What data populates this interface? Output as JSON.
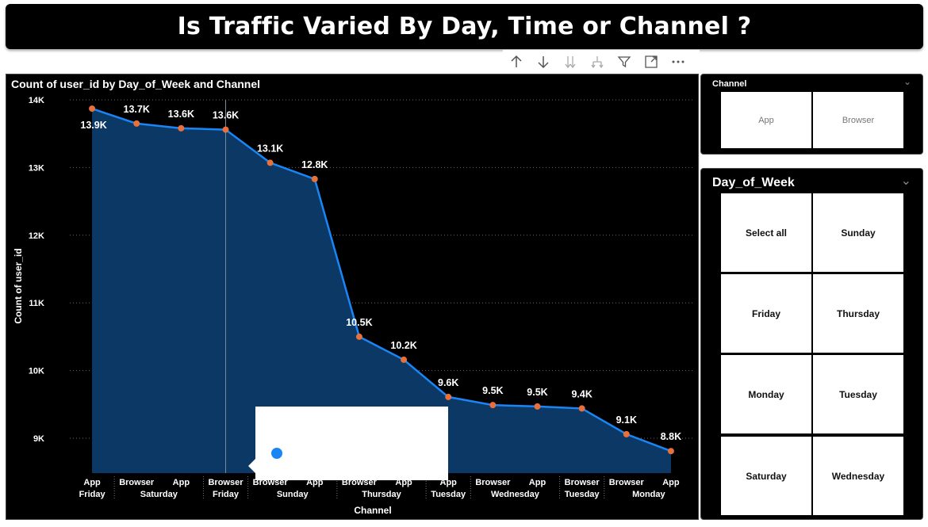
{
  "page": {
    "title": "Is Traffic Varied By Day, Time or Channel ?"
  },
  "toolbar": {
    "icons": [
      "arrow-up-icon",
      "arrow-down-icon",
      "double-arrow-down-icon",
      "fork-down-icon",
      "filter-icon",
      "focus-mode-icon",
      "more-options-icon"
    ]
  },
  "chart": {
    "title": "Count of user_id by Day_of_Week and Channel"
  },
  "chart_data": {
    "type": "area",
    "title": "Count of user_id by Day_of_Week and Channel",
    "xlabel": "Channel",
    "ylabel": "Count of user_id",
    "ylim": [
      8500,
      14000
    ],
    "yticks": [
      9000,
      10000,
      11000,
      12000,
      13000,
      14000
    ],
    "ytick_labels": [
      "9K",
      "10K",
      "11K",
      "12K",
      "13K",
      "14K"
    ],
    "grid": true,
    "x": [
      {
        "channel": "App",
        "day": "Friday"
      },
      {
        "channel": "Browser",
        "day": "Saturday"
      },
      {
        "channel": "App",
        "day": "Saturday"
      },
      {
        "channel": "Browser",
        "day": "Friday"
      },
      {
        "channel": "Browser",
        "day": "Sunday"
      },
      {
        "channel": "App",
        "day": "Sunday"
      },
      {
        "channel": "Browser",
        "day": "Thursday"
      },
      {
        "channel": "App",
        "day": "Thursday"
      },
      {
        "channel": "App",
        "day": "Tuesday"
      },
      {
        "channel": "Browser",
        "day": "Wednesday"
      },
      {
        "channel": "App",
        "day": "Wednesday"
      },
      {
        "channel": "Browser",
        "day": "Tuesday"
      },
      {
        "channel": "Browser",
        "day": "Monday"
      },
      {
        "channel": "App",
        "day": "Monday"
      }
    ],
    "day_groups": [
      {
        "label": "Friday",
        "start": 0,
        "end": 0
      },
      {
        "label": "Saturday",
        "start": 1,
        "end": 2
      },
      {
        "label": "Friday",
        "start": 3,
        "end": 3
      },
      {
        "label": "Sunday",
        "start": 4,
        "end": 5
      },
      {
        "label": "Thursday",
        "start": 6,
        "end": 7
      },
      {
        "label": "Tuesday",
        "start": 8,
        "end": 8
      },
      {
        "label": "Wednesday",
        "start": 9,
        "end": 10
      },
      {
        "label": "Tuesday",
        "start": 11,
        "end": 11
      },
      {
        "label": "Monday",
        "start": 12,
        "end": 13
      }
    ],
    "values": [
      13870,
      13650,
      13580,
      13560,
      13070,
      12830,
      10500,
      10160,
      9610,
      9490,
      9470,
      9440,
      9060,
      8810
    ],
    "data_labels": [
      "13.9K",
      "13.7K",
      "13.6K",
      "13.6K",
      "13.1K",
      "12.8K",
      "10.5K",
      "10.2K",
      "9.6K",
      "9.5K",
      "9.5K",
      "9.4K",
      "9.1K",
      "8.8K"
    ],
    "colors": {
      "line": "#1a86f5",
      "area": "#0c3866",
      "marker": "#e8703a",
      "grid": "#666666"
    }
  },
  "slicers": {
    "channel": {
      "header": "Channel",
      "options": [
        "App",
        "Browser"
      ]
    },
    "day_of_week": {
      "header": "Day_of_Week",
      "options": [
        "Select all",
        "Sunday",
        "Friday",
        "Thursday",
        "Monday",
        "Tuesday",
        "Saturday",
        "Wednesday"
      ]
    }
  }
}
